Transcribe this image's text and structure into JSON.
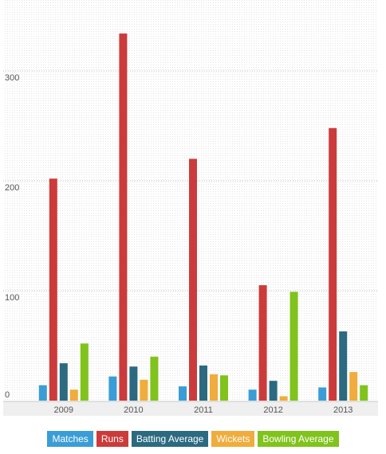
{
  "chart_data": {
    "type": "bar",
    "categories": [
      "2009",
      "2010",
      "2011",
      "2012",
      "2013"
    ],
    "series": [
      {
        "name": "Matches",
        "color": "#3a9dd6",
        "values": [
          14,
          22,
          13,
          10,
          12
        ]
      },
      {
        "name": "Runs",
        "color": "#cc3b3b",
        "values": [
          202,
          334,
          220,
          105,
          248
        ]
      },
      {
        "name": "Batting Average",
        "color": "#2b6a80",
        "values": [
          34,
          31,
          32,
          18,
          63
        ]
      },
      {
        "name": "Wickets",
        "color": "#f0ac3c",
        "values": [
          10,
          19,
          24,
          4,
          26
        ]
      },
      {
        "name": "Bowling Average",
        "color": "#80c31c",
        "values": [
          52,
          40,
          23,
          99,
          14
        ]
      }
    ],
    "yticks": [
      0,
      100,
      200,
      300
    ],
    "ylim": [
      0,
      340
    ],
    "title": "",
    "xlabel": "",
    "ylabel": "",
    "grid": true,
    "legend_position": "bottom"
  }
}
